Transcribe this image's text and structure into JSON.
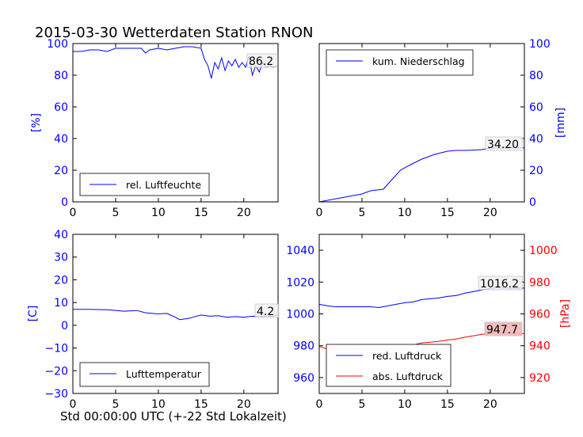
{
  "title": "2015-03-30 Wetterdaten Station RNON",
  "xlabel": "Std 00:00:00 UTC (+-22 Std Lokalzeit)",
  "colors": {
    "blue": "#0000ff",
    "red": "#ff0000"
  },
  "chart_data": [
    {
      "type": "line",
      "id": "humidity",
      "ylabel": "[%]",
      "xlim": [
        0,
        24
      ],
      "ylim": [
        0,
        100
      ],
      "xticks": [
        "0",
        "5",
        "10",
        "15",
        "20"
      ],
      "yticks": [
        "0",
        "20",
        "40",
        "60",
        "80",
        "100"
      ],
      "legend": "lower-left",
      "annotation": "86.2",
      "series": [
        {
          "name": "rel. Luftfeuchte",
          "color": "#0000ff",
          "x": [
            0,
            1,
            2,
            3,
            4,
            5,
            6,
            7,
            8,
            8.5,
            9,
            10,
            11,
            12,
            13,
            14,
            15,
            15.4,
            15.8,
            16.2,
            16.6,
            17,
            17.4,
            17.8,
            18.2,
            18.6,
            19,
            19.4,
            19.8,
            20.2,
            20.6,
            21,
            21.4,
            21.8,
            22.2,
            22.6,
            23,
            23.5,
            24
          ],
          "y": [
            95,
            95,
            96,
            96,
            95,
            97,
            97,
            97,
            97,
            94,
            96,
            97,
            96,
            97,
            98,
            98,
            97,
            90,
            86,
            78,
            88,
            84,
            91,
            83,
            89,
            86,
            90,
            85,
            88,
            85,
            92,
            80,
            86,
            82,
            88,
            85,
            86,
            85,
            86.2
          ]
        }
      ]
    },
    {
      "type": "line",
      "id": "precipitation",
      "ylabel": "[mm]",
      "xlim": [
        0,
        24
      ],
      "ylim": [
        0,
        100
      ],
      "xticks": [
        "0",
        "5",
        "10",
        "15",
        "20"
      ],
      "yticks": [
        "0",
        "20",
        "40",
        "60",
        "80",
        "100"
      ],
      "legend": "upper-left",
      "annotation": "34.20",
      "series": [
        {
          "name": "kum. Niederschlag",
          "color": "#0000ff",
          "x": [
            0,
            2,
            4,
            5,
            6,
            7.5,
            8.5,
            9.5,
            10.5,
            12,
            13.5,
            15,
            16,
            17,
            18,
            19,
            20,
            24
          ],
          "y": [
            0,
            2,
            4,
            5,
            7,
            8,
            14,
            20,
            23,
            27,
            30,
            32,
            32.5,
            32.5,
            32.7,
            33,
            34,
            34.2
          ]
        }
      ]
    },
    {
      "type": "line",
      "id": "temperature",
      "ylabel": "[C]",
      "xlim": [
        0,
        24
      ],
      "ylim": [
        -30,
        40
      ],
      "xticks": [
        "0",
        "5",
        "10",
        "15",
        "20"
      ],
      "yticks": [
        "−30",
        "−20",
        "−10",
        "0",
        "10",
        "20",
        "30",
        "40"
      ],
      "legend": "lower-left",
      "annotation": "4.2",
      "series": [
        {
          "name": "Lufttemperatur",
          "color": "#0000ff",
          "x": [
            0,
            2,
            4,
            6,
            7.5,
            8.5,
            10,
            11,
            12,
            12.5,
            13.5,
            14,
            15,
            16,
            17,
            18,
            19,
            20,
            21,
            22,
            23,
            24
          ],
          "y": [
            7,
            7,
            6.8,
            6.2,
            6.5,
            5.5,
            5,
            5.2,
            3.5,
            2.5,
            3,
            3.5,
            4.5,
            4,
            4.2,
            3.5,
            3.8,
            3.5,
            4,
            3.8,
            4,
            4.2
          ]
        }
      ]
    },
    {
      "type": "line",
      "id": "pressure",
      "xlim": [
        0,
        24
      ],
      "ylim": [
        950,
        1050
      ],
      "ylim_right": [
        910,
        1010
      ],
      "ylabel_right": "[hPa]",
      "xticks": [
        "0",
        "5",
        "10",
        "15",
        "20"
      ],
      "yticks": [
        "960",
        "980",
        "1000",
        "1020",
        "1040"
      ],
      "yticks_right": [
        "920",
        "940",
        "960",
        "980",
        "1000"
      ],
      "legend": "lower-left",
      "annotation_red_press": "1016.2",
      "annotation_abs_press": "947.7",
      "series": [
        {
          "name": "red. Luftdruck",
          "color": "#0000ff",
          "axis": "left",
          "x": [
            0,
            1,
            2,
            3,
            4,
            5,
            6,
            7,
            8,
            9,
            10,
            11,
            12,
            13,
            14,
            15,
            16,
            17,
            18,
            19,
            20,
            21,
            22,
            23,
            24
          ],
          "y": [
            1006,
            1005,
            1004.5,
            1004.5,
            1004.5,
            1004.5,
            1004.5,
            1004,
            1005,
            1006,
            1007,
            1007.5,
            1009,
            1009.5,
            1010,
            1011,
            1011.5,
            1013,
            1014,
            1015,
            1016,
            1016.5,
            1016.2,
            1016,
            1016.2
          ]
        },
        {
          "name": "abs. Luftdruck",
          "color": "#ff0000",
          "axis": "right",
          "x": [
            0,
            1,
            2,
            3,
            4,
            5,
            6,
            7,
            8,
            9,
            10,
            11,
            12,
            13,
            14,
            15,
            16,
            17,
            18,
            19,
            20,
            21,
            22,
            23,
            24
          ],
          "y": [
            939.5,
            937.8,
            937.5,
            937.2,
            937.3,
            937.2,
            937.2,
            936.8,
            938,
            939,
            939.8,
            940.5,
            941.8,
            942.2,
            942.8,
            943.6,
            944.2,
            945.3,
            946.2,
            947.1,
            947.8,
            948.1,
            947.9,
            947.7,
            947.7
          ]
        }
      ]
    }
  ]
}
